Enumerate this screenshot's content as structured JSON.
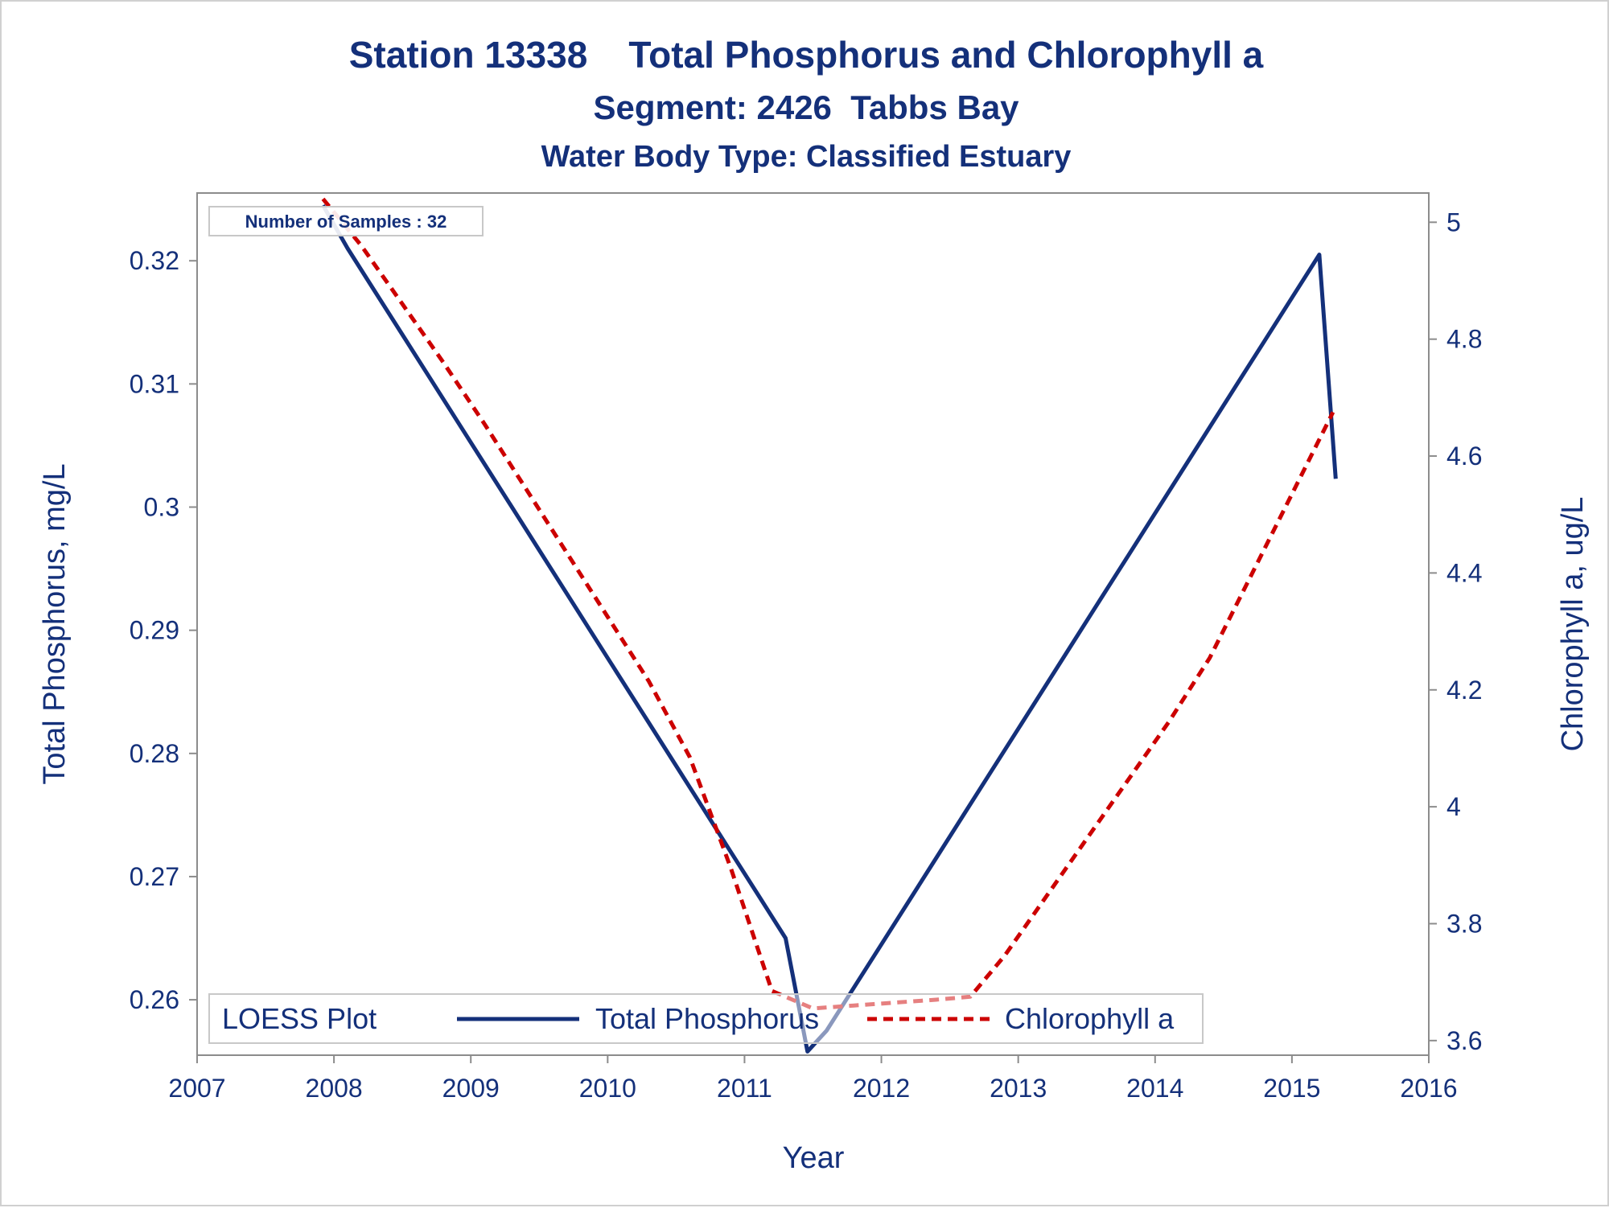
{
  "chart_data": {
    "type": "line",
    "title": "Station 13338    Total Phosphorus and Chlorophyll a",
    "subtitle": "Segment: 2426  Tabbs Bay",
    "subtitle2": "Water Body Type: Classified Estuary",
    "xlabel": "Year",
    "ylabel": "Total Phosphorus, mg/L",
    "y2label": "Chlorophyll a, ug/L",
    "xlim": [
      2007,
      2016
    ],
    "ylim": [
      0.2555,
      0.3255
    ],
    "y2lim": [
      3.575,
      5.05
    ],
    "xticks": [
      "2007",
      "2008",
      "2009",
      "2010",
      "2011",
      "2012",
      "2013",
      "2014",
      "2015",
      "2016"
    ],
    "yticks": [
      "0.26",
      "0.27",
      "0.28",
      "0.29",
      "0.3",
      "0.31",
      "0.32"
    ],
    "y2ticks": [
      "3.6",
      "3.8",
      "4",
      "4.2",
      "4.4",
      "4.6",
      "4.8",
      "5"
    ],
    "annotation": "Number of Samples : 32",
    "legend": {
      "title": "LOESS Plot",
      "placement": "bottom-inside"
    },
    "grid": false,
    "series": [
      {
        "name": "Total Phosphorus",
        "axis": "left",
        "color": "#14307a",
        "style": "solid",
        "x": [
          2007.92,
          2008.1,
          2008.3,
          2008.5,
          2008.7,
          2008.9,
          2009.1,
          2009.3,
          2009.5,
          2009.7,
          2009.9,
          2010.1,
          2010.3,
          2010.5,
          2010.7,
          2010.9,
          2011.1,
          2011.3,
          2011.46,
          2011.6,
          2011.8,
          2012.0,
          2012.2,
          2012.4,
          2012.6,
          2012.8,
          2013.0,
          2013.2,
          2013.4,
          2013.6,
          2013.8,
          2014.0,
          2014.2,
          2014.4,
          2014.6,
          2014.8,
          2015.0,
          2015.2,
          2015.32
        ],
        "values": [
          0.3245,
          0.321,
          0.3175,
          0.314,
          0.3105,
          0.307,
          0.3035,
          0.3,
          0.2965,
          0.293,
          0.2895,
          0.286,
          0.2825,
          0.279,
          0.2755,
          0.272,
          0.2685,
          0.265,
          0.2558,
          0.2575,
          0.261,
          0.2645,
          0.268,
          0.2715,
          0.275,
          0.2785,
          0.282,
          0.2855,
          0.289,
          0.2925,
          0.296,
          0.2995,
          0.303,
          0.3065,
          0.31,
          0.3135,
          0.317,
          0.3205,
          0.3023
        ]
      },
      {
        "name": "Chlorophyll a",
        "axis": "right",
        "color": "#cc0000",
        "style": "dashed",
        "x": [
          2007.92,
          2008.2,
          2008.5,
          2008.8,
          2009.1,
          2009.4,
          2009.7,
          2010.0,
          2010.3,
          2010.6,
          2010.9,
          2011.2,
          2011.5,
          2011.8,
          2012.1,
          2012.4,
          2012.65,
          2012.9,
          2013.2,
          2013.5,
          2013.8,
          2014.1,
          2014.4,
          2014.7,
          2015.0,
          2015.3
        ],
        "values": [
          5.04,
          4.96,
          4.86,
          4.76,
          4.655,
          4.545,
          4.435,
          4.325,
          4.215,
          4.085,
          3.895,
          3.685,
          3.655,
          3.66,
          3.665,
          3.67,
          3.675,
          3.745,
          3.845,
          3.945,
          4.045,
          4.145,
          4.255,
          4.395,
          4.535,
          4.675
        ]
      }
    ]
  }
}
